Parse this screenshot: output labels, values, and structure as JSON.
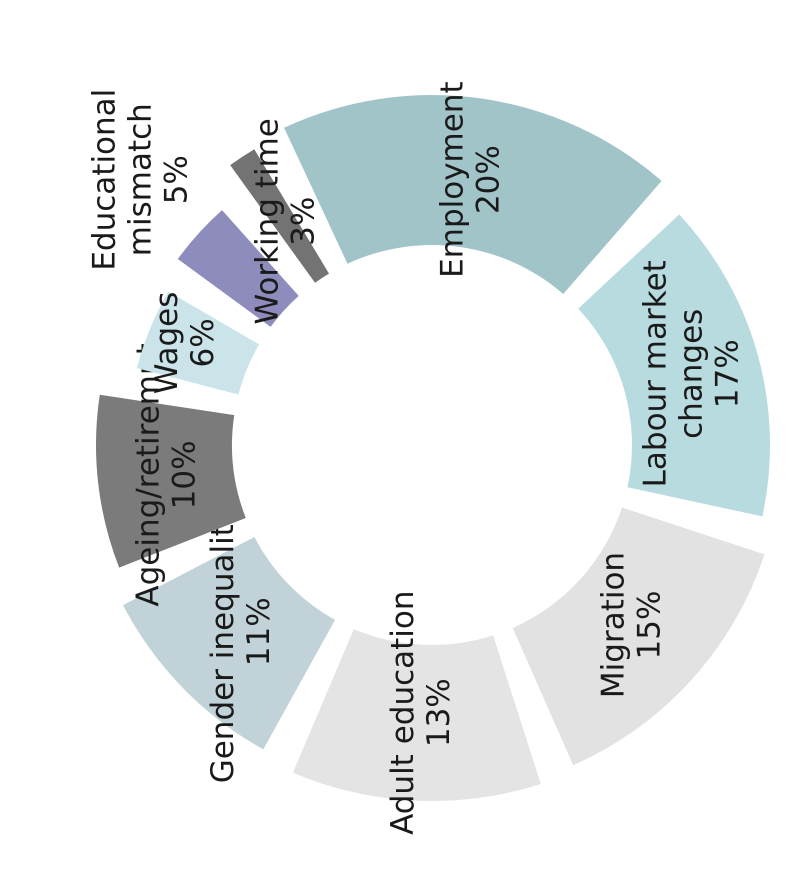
{
  "chart_data": {
    "type": "pie",
    "variant": "exploded-donut",
    "title": "",
    "segments": [
      {
        "label": [
          "Labour market",
          "changes"
        ],
        "value_label": "17%",
        "value": 17,
        "color": "#b8dbe0"
      },
      {
        "label": [
          "Migration"
        ],
        "value_label": "15%",
        "value": 15,
        "color": "#e2e2e2"
      },
      {
        "label": [
          "Adult education"
        ],
        "value_label": "13%",
        "value": 13,
        "color": "#e4e4e4"
      },
      {
        "label": [
          "Gender inequalities"
        ],
        "value_label": "11%",
        "value": 11,
        "color": "#c1d3d9"
      },
      {
        "label": [
          "Ageing/retiremnt"
        ],
        "value_label": "10%",
        "value": 10,
        "color": "#7b7b7b"
      },
      {
        "label": [
          "Wages"
        ],
        "value_label": "6%",
        "value": 6,
        "color": "#cbe4ea"
      },
      {
        "label": [
          "Educational",
          "mismatch"
        ],
        "value_label": "5%",
        "value": 5,
        "color": "#8e8cbc"
      },
      {
        "label": [
          "Working time"
        ],
        "value_label": "3%",
        "value": 3,
        "color": "#737373"
      },
      {
        "label": [
          "Employment"
        ],
        "value_label": "20%",
        "value": 20,
        "color": "#a1c4c9"
      }
    ]
  }
}
